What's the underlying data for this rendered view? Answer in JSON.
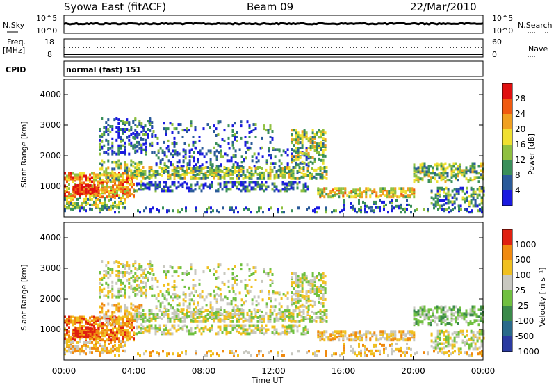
{
  "header": {
    "station": "Syowa East (fitACF)",
    "beam": "Beam 09",
    "date": "22/Mar/2010"
  },
  "panels": {
    "nsky_label": "N.Sky",
    "nsky_top": "10^5",
    "nsky_bottom": "10^0",
    "nsearch_label": "N.Search",
    "nsearch_top": "10^5",
    "nsearch_bottom": "10^0",
    "freq_label_1": "Freq.",
    "freq_label_2": "[MHz]",
    "freq_top": "18",
    "freq_bottom": "8",
    "nave_label": "Nave",
    "nave_top": "60",
    "nave_bottom": "0",
    "cpid_label": "CPID",
    "cpid_value": "normal (fast) 151"
  },
  "chart_data": [
    {
      "type": "heatmap",
      "name": "power",
      "ylabel": "Slant Range [km]",
      "yticks": [
        "1000",
        "2000",
        "3000",
        "4000"
      ],
      "colorbar_label": "Power [dB]",
      "colorbar_ticks": [
        "4",
        "8",
        "12",
        "16",
        "20",
        "24",
        "28"
      ],
      "colors": [
        "#1a1ae0",
        "#2a5a9a",
        "#3a8f5a",
        "#8fc040",
        "#f0e030",
        "#f0a020",
        "#f05a10",
        "#e01010"
      ]
    },
    {
      "type": "heatmap",
      "name": "velocity",
      "ylabel": "Slant Range [km]",
      "yticks": [
        "1000",
        "2000",
        "3000",
        "4000"
      ],
      "colorbar_label": "Velocity [m s⁻¹]",
      "colorbar_ticks": [
        "1000",
        "500",
        "100",
        "25",
        "-25",
        "-100",
        "-500",
        "-1000"
      ],
      "colors": [
        "#2a3aa0",
        "#2a6a8a",
        "#3a8a4a",
        "#70c040",
        "#c8c8c0",
        "#f0c020",
        "#f08a10",
        "#e02010"
      ]
    }
  ],
  "xaxis": {
    "label": "Time UT",
    "ticks": [
      "00:00",
      "04:00",
      "08:00",
      "12:00",
      "16:00",
      "20:00",
      "00:00"
    ]
  }
}
